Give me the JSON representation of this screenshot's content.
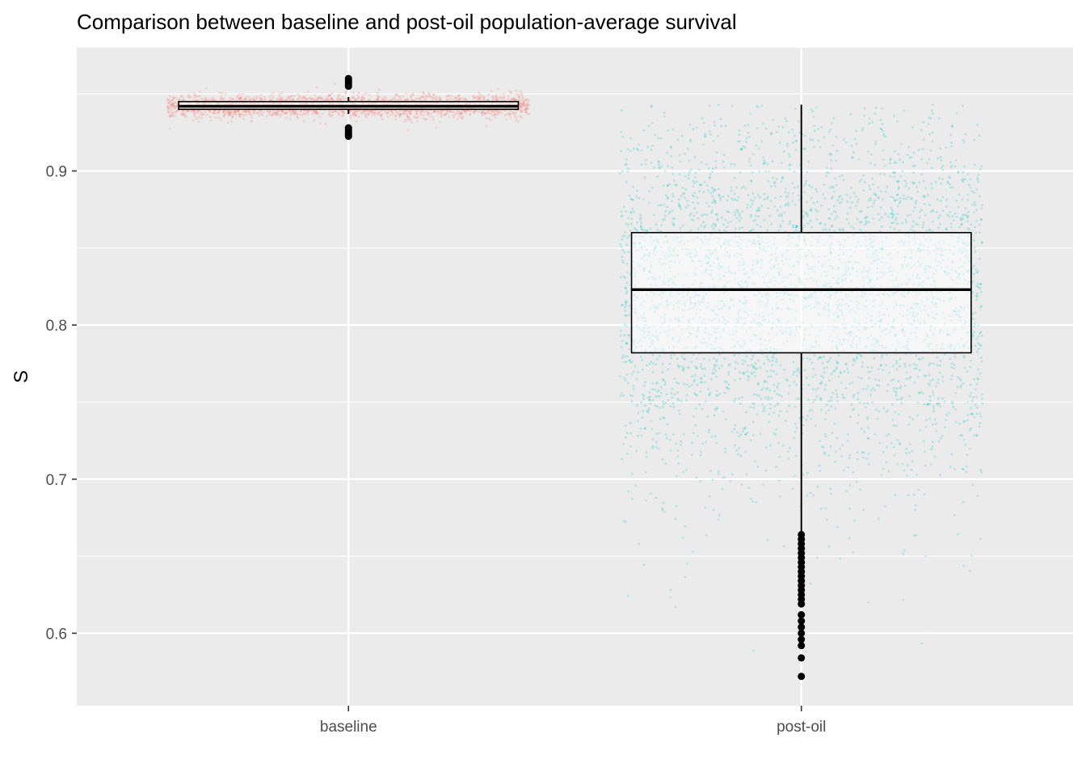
{
  "chart_data": {
    "type": "boxplot",
    "title": "Comparison between baseline and post-oil population-average survival",
    "xlabel": "",
    "ylabel": "S",
    "categories": [
      "baseline",
      "post-oil"
    ],
    "ylim": [
      0.553,
      0.98
    ],
    "yticks": [
      0.6,
      0.7,
      0.8,
      0.9
    ],
    "ytick_labels": [
      "0.6",
      "0.7",
      "0.8",
      "0.9"
    ],
    "grid": true,
    "jittered_points": true,
    "series": [
      {
        "category": "baseline",
        "color": "#F8766D",
        "min": 0.937,
        "q1": 0.94,
        "median": 0.942,
        "q3": 0.945,
        "max": 0.948,
        "outliers": [
          0.9225,
          0.9235,
          0.9245,
          0.925,
          0.926,
          0.927,
          0.928,
          0.955,
          0.956,
          0.957,
          0.958,
          0.959,
          0.96
        ]
      },
      {
        "category": "post-oil",
        "color": "#00BFC4",
        "min": 0.666,
        "q1": 0.782,
        "median": 0.823,
        "q3": 0.86,
        "max": 0.943,
        "outliers": [
          0.664,
          0.661,
          0.658,
          0.655,
          0.652,
          0.649,
          0.646,
          0.643,
          0.64,
          0.637,
          0.634,
          0.631,
          0.628,
          0.625,
          0.622,
          0.619,
          0.612,
          0.608,
          0.604,
          0.6,
          0.596,
          0.592,
          0.584,
          0.572
        ]
      }
    ]
  },
  "colors": {
    "panel_bg": "#EBEBEB",
    "grid_major": "#FFFFFF",
    "baseline": "#F8766D",
    "post_oil": "#00BFC4"
  }
}
